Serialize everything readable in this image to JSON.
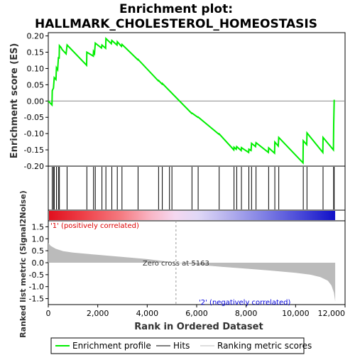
{
  "chart_data": {
    "type": "line",
    "title_line1": "Enrichment plot:",
    "title_line2": "HALLMARK_CHOLESTEROL_HOMEOSTASIS",
    "es_panel": {
      "ylabel": "Enrichment score (ES)",
      "ylim": [
        -0.2,
        0.21
      ],
      "yticks": [
        "0.20",
        "0.15",
        "0.10",
        "0.05",
        "0.00",
        "-0.05",
        "-0.10",
        "-0.15",
        "-0.20"
      ],
      "ytick_values": [
        0.2,
        0.15,
        0.1,
        0.05,
        0.0,
        -0.05,
        -0.1,
        -0.15,
        -0.2
      ],
      "series_name": "Enrichment profile",
      "color": "#00ee00",
      "points": [
        [
          0,
          0.0
        ],
        [
          150,
          -0.012
        ],
        [
          160,
          0.032
        ],
        [
          210,
          0.04
        ],
        [
          240,
          0.072
        ],
        [
          310,
          0.066
        ],
        [
          330,
          0.102
        ],
        [
          380,
          0.096
        ],
        [
          410,
          0.135
        ],
        [
          440,
          0.13
        ],
        [
          450,
          0.17
        ],
        [
          520,
          0.164
        ],
        [
          560,
          0.158
        ],
        [
          720,
          0.145
        ],
        [
          760,
          0.172
        ],
        [
          1550,
          0.11
        ],
        [
          1560,
          0.15
        ],
        [
          1820,
          0.138
        ],
        [
          1830,
          0.152
        ],
        [
          1870,
          0.146
        ],
        [
          1900,
          0.178
        ],
        [
          2150,
          0.163
        ],
        [
          2170,
          0.172
        ],
        [
          2320,
          0.162
        ],
        [
          2330,
          0.192
        ],
        [
          2550,
          0.176
        ],
        [
          2570,
          0.186
        ],
        [
          2780,
          0.172
        ],
        [
          2790,
          0.182
        ],
        [
          2960,
          0.168
        ],
        [
          2980,
          0.174
        ],
        [
          3620,
          0.127
        ],
        [
          3630,
          0.128
        ],
        [
          4450,
          0.062
        ],
        [
          4460,
          0.063
        ],
        [
          4600,
          0.052
        ],
        [
          4610,
          0.054
        ],
        [
          5800,
          -0.038
        ],
        [
          5810,
          -0.037
        ],
        [
          6050,
          -0.05
        ],
        [
          6060,
          -0.049
        ],
        [
          6900,
          -0.102
        ],
        [
          6910,
          -0.101
        ],
        [
          7500,
          -0.15
        ],
        [
          7510,
          -0.142
        ],
        [
          7600,
          -0.148
        ],
        [
          7620,
          -0.14
        ],
        [
          7800,
          -0.152
        ],
        [
          7810,
          -0.143
        ],
        [
          8100,
          -0.158
        ],
        [
          8110,
          -0.148
        ],
        [
          8200,
          -0.152
        ],
        [
          8220,
          -0.13
        ],
        [
          8380,
          -0.14
        ],
        [
          8400,
          -0.128
        ],
        [
          8900,
          -0.158
        ],
        [
          8910,
          -0.144
        ],
        [
          9150,
          -0.16
        ],
        [
          9160,
          -0.126
        ],
        [
          9300,
          -0.138
        ],
        [
          9320,
          -0.112
        ],
        [
          10300,
          -0.19
        ],
        [
          10310,
          -0.122
        ],
        [
          10450,
          -0.134
        ],
        [
          10460,
          -0.098
        ],
        [
          11100,
          -0.158
        ],
        [
          11110,
          -0.112
        ],
        [
          11530,
          -0.15
        ],
        [
          11540,
          -0.072
        ],
        [
          11560,
          0.004
        ]
      ]
    },
    "hits_x": [
      160,
      210,
      240,
      330,
      410,
      450,
      760,
      1560,
      1830,
      1900,
      2170,
      2330,
      2570,
      2790,
      2980,
      3630,
      4460,
      4610,
      4900,
      5000,
      5810,
      6060,
      6910,
      7510,
      7620,
      7810,
      8110,
      8220,
      8400,
      8910,
      9160,
      9320,
      10310,
      10460,
      11110,
      11540,
      11560
    ],
    "metric_panel": {
      "ylabel": "Ranked list metric (Signal2Noise)",
      "xlabel": "Rank in Ordered Dataset",
      "ylim": [
        -1.75,
        1.75
      ],
      "yticks": [
        "1.5",
        "1.0",
        "0.5",
        "0.0",
        "-0.5",
        "-1.0",
        "-1.5"
      ],
      "ytick_values": [
        1.5,
        1.0,
        0.5,
        0.0,
        -0.5,
        -1.0,
        -1.5
      ],
      "xlim": [
        0,
        12000
      ],
      "xticks": [
        "0",
        "2,000",
        "4,000",
        "6,000",
        "8,000",
        "10,000",
        "12,000"
      ],
      "xtick_values": [
        0,
        2000,
        4000,
        6000,
        8000,
        10000,
        12000
      ],
      "n_genes": 11600,
      "zero_cross": 5163,
      "zero_cross_label": "Zero cross at 5163",
      "pos_label": "'1' (positively correlated)",
      "neg_label": "'2' (negatively correlated)",
      "profile": [
        [
          0,
          0.82
        ],
        [
          100,
          0.7
        ],
        [
          300,
          0.58
        ],
        [
          600,
          0.48
        ],
        [
          1000,
          0.42
        ],
        [
          2000,
          0.33
        ],
        [
          3000,
          0.24
        ],
        [
          4000,
          0.15
        ],
        [
          5163,
          0.0
        ],
        [
          6000,
          -0.08
        ],
        [
          7000,
          -0.17
        ],
        [
          8000,
          -0.25
        ],
        [
          9000,
          -0.33
        ],
        [
          10000,
          -0.42
        ],
        [
          10600,
          -0.5
        ],
        [
          11000,
          -0.6
        ],
        [
          11300,
          -0.75
        ],
        [
          11450,
          -0.95
        ],
        [
          11550,
          -1.25
        ],
        [
          11600,
          -1.62
        ]
      ]
    },
    "legend": {
      "entries": [
        "Enrichment profile",
        "Hits",
        "Ranking metric scores"
      ],
      "colors": [
        "#00ee00",
        "#000000",
        "#bbbbbb"
      ]
    }
  }
}
